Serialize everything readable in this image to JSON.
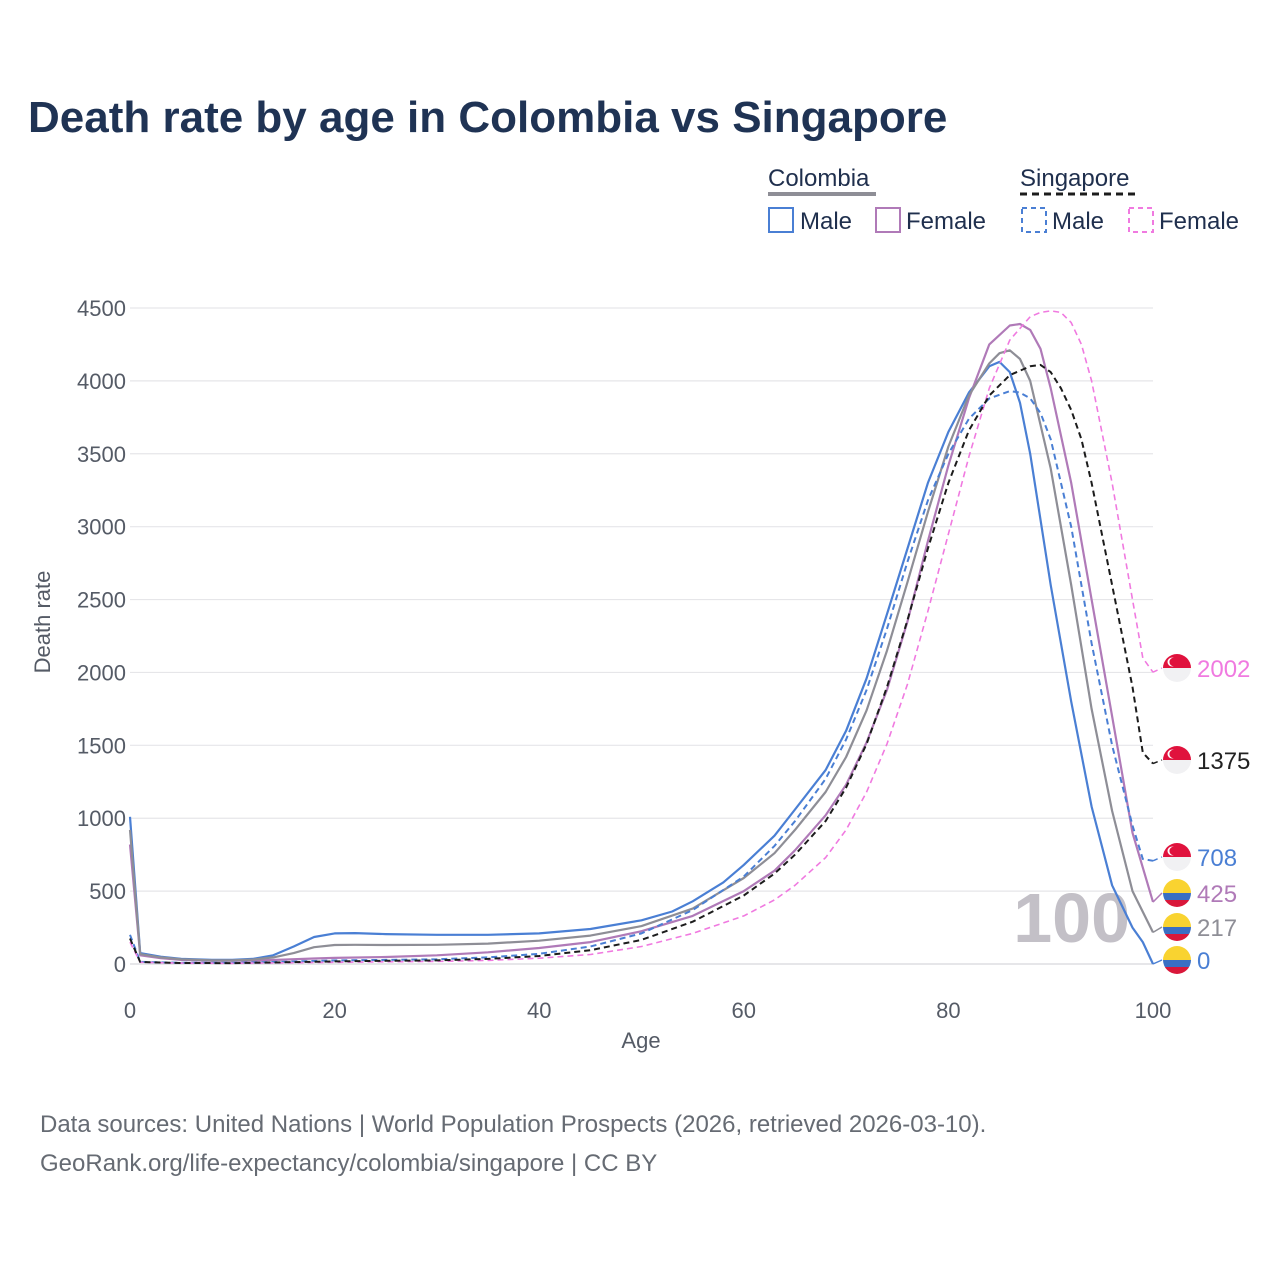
{
  "chart_data": {
    "type": "line",
    "title": "Death rate by age in Colombia vs Singapore",
    "xlabel": "Age",
    "ylabel": "Death rate",
    "xlim": [
      0,
      100
    ],
    "ylim": [
      0,
      4500
    ],
    "xticks": [
      0,
      20,
      40,
      60,
      80,
      100
    ],
    "yticks": [
      0,
      500,
      1000,
      1500,
      2000,
      2500,
      3000,
      3500,
      4000,
      4500
    ],
    "grid": true,
    "year_watermark": "100",
    "legend": {
      "position": "top-right",
      "groups": [
        {
          "country": "Colombia",
          "style": "solid",
          "entries": [
            "Male",
            "Female"
          ]
        },
        {
          "country": "Singapore",
          "style": "dashed",
          "entries": [
            "Male",
            "Female"
          ]
        }
      ]
    },
    "series": [
      {
        "name": "Colombia Male",
        "country": "Colombia",
        "sex": "Male",
        "color": "#4a7fd4",
        "dashed": false,
        "end_label": "0",
        "flag": "colombia",
        "points": [
          [
            0,
            1010
          ],
          [
            1,
            75
          ],
          [
            3,
            50
          ],
          [
            5,
            35
          ],
          [
            8,
            28
          ],
          [
            10,
            28
          ],
          [
            12,
            35
          ],
          [
            14,
            60
          ],
          [
            16,
            120
          ],
          [
            18,
            185
          ],
          [
            20,
            210
          ],
          [
            22,
            212
          ],
          [
            25,
            205
          ],
          [
            30,
            200
          ],
          [
            35,
            200
          ],
          [
            40,
            210
          ],
          [
            45,
            240
          ],
          [
            50,
            300
          ],
          [
            53,
            360
          ],
          [
            55,
            430
          ],
          [
            58,
            560
          ],
          [
            60,
            680
          ],
          [
            63,
            880
          ],
          [
            65,
            1060
          ],
          [
            68,
            1330
          ],
          [
            70,
            1600
          ],
          [
            72,
            1960
          ],
          [
            74,
            2400
          ],
          [
            76,
            2850
          ],
          [
            78,
            3300
          ],
          [
            80,
            3650
          ],
          [
            82,
            3920
          ],
          [
            84,
            4100
          ],
          [
            85,
            4130
          ],
          [
            86,
            4060
          ],
          [
            87,
            3850
          ],
          [
            88,
            3500
          ],
          [
            90,
            2600
          ],
          [
            92,
            1800
          ],
          [
            94,
            1080
          ],
          [
            96,
            540
          ],
          [
            98,
            250
          ],
          [
            99,
            150
          ],
          [
            100,
            0
          ]
        ]
      },
      {
        "name": "Colombia Female",
        "country": "Colombia",
        "sex": "Female",
        "color": "#b07ab8",
        "dashed": false,
        "end_label": "425",
        "flag": "colombia",
        "points": [
          [
            0,
            820
          ],
          [
            1,
            60
          ],
          [
            3,
            40
          ],
          [
            5,
            28
          ],
          [
            8,
            22
          ],
          [
            10,
            22
          ],
          [
            12,
            24
          ],
          [
            15,
            30
          ],
          [
            18,
            38
          ],
          [
            20,
            42
          ],
          [
            25,
            48
          ],
          [
            30,
            60
          ],
          [
            35,
            80
          ],
          [
            40,
            110
          ],
          [
            45,
            150
          ],
          [
            50,
            225
          ],
          [
            55,
            330
          ],
          [
            60,
            500
          ],
          [
            63,
            640
          ],
          [
            65,
            780
          ],
          [
            68,
            1020
          ],
          [
            70,
            1230
          ],
          [
            72,
            1520
          ],
          [
            74,
            1880
          ],
          [
            76,
            2350
          ],
          [
            78,
            2900
          ],
          [
            80,
            3420
          ],
          [
            82,
            3880
          ],
          [
            84,
            4250
          ],
          [
            86,
            4380
          ],
          [
            87,
            4390
          ],
          [
            88,
            4350
          ],
          [
            89,
            4220
          ],
          [
            90,
            3950
          ],
          [
            92,
            3300
          ],
          [
            94,
            2500
          ],
          [
            96,
            1700
          ],
          [
            98,
            900
          ],
          [
            100,
            425
          ]
        ]
      },
      {
        "name": "Colombia (Both sexes)",
        "country": "Colombia",
        "sex": "Both",
        "color": "#8e8e96",
        "dashed": false,
        "end_label": "217",
        "flag": "colombia",
        "points": [
          [
            0,
            920
          ],
          [
            1,
            68
          ],
          [
            3,
            45
          ],
          [
            5,
            32
          ],
          [
            8,
            25
          ],
          [
            10,
            25
          ],
          [
            12,
            30
          ],
          [
            14,
            45
          ],
          [
            16,
            75
          ],
          [
            18,
            115
          ],
          [
            20,
            130
          ],
          [
            22,
            132
          ],
          [
            25,
            130
          ],
          [
            30,
            132
          ],
          [
            35,
            140
          ],
          [
            40,
            160
          ],
          [
            45,
            195
          ],
          [
            50,
            260
          ],
          [
            55,
            380
          ],
          [
            60,
            590
          ],
          [
            63,
            760
          ],
          [
            65,
            920
          ],
          [
            68,
            1180
          ],
          [
            70,
            1420
          ],
          [
            72,
            1740
          ],
          [
            74,
            2150
          ],
          [
            76,
            2620
          ],
          [
            78,
            3100
          ],
          [
            80,
            3550
          ],
          [
            82,
            3900
          ],
          [
            84,
            4120
          ],
          [
            85,
            4190
          ],
          [
            86,
            4210
          ],
          [
            87,
            4150
          ],
          [
            88,
            4000
          ],
          [
            90,
            3400
          ],
          [
            92,
            2600
          ],
          [
            94,
            1750
          ],
          [
            96,
            1050
          ],
          [
            98,
            500
          ],
          [
            100,
            217
          ]
        ]
      },
      {
        "name": "Singapore Male",
        "country": "Singapore",
        "sex": "Male",
        "color": "#4a7fd4",
        "dashed": true,
        "end_label": "708",
        "flag": "singapore",
        "points": [
          [
            0,
            200
          ],
          [
            1,
            15
          ],
          [
            5,
            8
          ],
          [
            10,
            8
          ],
          [
            15,
            15
          ],
          [
            20,
            25
          ],
          [
            25,
            28
          ],
          [
            30,
            32
          ],
          [
            35,
            45
          ],
          [
            40,
            70
          ],
          [
            45,
            120
          ],
          [
            50,
            210
          ],
          [
            55,
            370
          ],
          [
            60,
            600
          ],
          [
            63,
            810
          ],
          [
            65,
            980
          ],
          [
            68,
            1270
          ],
          [
            70,
            1540
          ],
          [
            72,
            1880
          ],
          [
            74,
            2300
          ],
          [
            76,
            2760
          ],
          [
            78,
            3180
          ],
          [
            80,
            3500
          ],
          [
            82,
            3740
          ],
          [
            84,
            3880
          ],
          [
            86,
            3930
          ],
          [
            87,
            3920
          ],
          [
            88,
            3880
          ],
          [
            89,
            3780
          ],
          [
            90,
            3600
          ],
          [
            92,
            3000
          ],
          [
            94,
            2200
          ],
          [
            96,
            1500
          ],
          [
            98,
            950
          ],
          [
            99,
            720
          ],
          [
            100,
            708
          ]
        ]
      },
      {
        "name": "Singapore Female",
        "country": "Singapore",
        "sex": "Female",
        "color": "#f07ae0",
        "dashed": true,
        "end_label": "2002",
        "flag": "singapore",
        "points": [
          [
            0,
            150
          ],
          [
            1,
            12
          ],
          [
            5,
            6
          ],
          [
            10,
            5
          ],
          [
            15,
            8
          ],
          [
            20,
            12
          ],
          [
            25,
            15
          ],
          [
            30,
            18
          ],
          [
            35,
            25
          ],
          [
            40,
            40
          ],
          [
            45,
            65
          ],
          [
            50,
            120
          ],
          [
            55,
            210
          ],
          [
            60,
            330
          ],
          [
            63,
            440
          ],
          [
            65,
            540
          ],
          [
            68,
            730
          ],
          [
            70,
            920
          ],
          [
            72,
            1180
          ],
          [
            74,
            1510
          ],
          [
            76,
            1920
          ],
          [
            78,
            2420
          ],
          [
            80,
            2950
          ],
          [
            82,
            3480
          ],
          [
            84,
            3950
          ],
          [
            86,
            4280
          ],
          [
            88,
            4440
          ],
          [
            89,
            4470
          ],
          [
            90,
            4480
          ],
          [
            91,
            4470
          ],
          [
            92,
            4400
          ],
          [
            93,
            4250
          ],
          [
            94,
            4000
          ],
          [
            96,
            3300
          ],
          [
            98,
            2500
          ],
          [
            99,
            2100
          ],
          [
            100,
            2002
          ]
        ]
      },
      {
        "name": "Singapore (Both sexes)",
        "country": "Singapore",
        "sex": "Both",
        "color": "#1c1c1c",
        "dashed": true,
        "end_label": "1375",
        "flag": "singapore",
        "points": [
          [
            0,
            175
          ],
          [
            1,
            14
          ],
          [
            5,
            7
          ],
          [
            10,
            6
          ],
          [
            15,
            12
          ],
          [
            20,
            18
          ],
          [
            25,
            22
          ],
          [
            30,
            25
          ],
          [
            35,
            35
          ],
          [
            40,
            55
          ],
          [
            45,
            95
          ],
          [
            50,
            165
          ],
          [
            55,
            290
          ],
          [
            60,
            470
          ],
          [
            63,
            620
          ],
          [
            65,
            750
          ],
          [
            68,
            980
          ],
          [
            70,
            1210
          ],
          [
            72,
            1510
          ],
          [
            74,
            1900
          ],
          [
            76,
            2360
          ],
          [
            78,
            2850
          ],
          [
            80,
            3300
          ],
          [
            82,
            3660
          ],
          [
            84,
            3900
          ],
          [
            86,
            4040
          ],
          [
            88,
            4100
          ],
          [
            89,
            4110
          ],
          [
            90,
            4060
          ],
          [
            91,
            3950
          ],
          [
            92,
            3800
          ],
          [
            93,
            3600
          ],
          [
            94,
            3300
          ],
          [
            96,
            2600
          ],
          [
            98,
            1900
          ],
          [
            99,
            1450
          ],
          [
            100,
            1375
          ]
        ]
      }
    ]
  },
  "sources": {
    "line1": "Data sources: United Nations | World Population Prospects (2026, retrieved 2026-03-10).",
    "line2": "GeoRank.org/life-expectancy/colombia/singapore | CC BY"
  },
  "colors": {
    "title": "#1f3354",
    "grid": "#e6e6e9",
    "axis_text": "#555b66",
    "watermark": "#c3c0c7",
    "colombia_yellow": "#f9d330",
    "colombia_blue": "#3a6fc4",
    "colombia_red": "#d9173a",
    "singapore_red": "#e0123d"
  }
}
